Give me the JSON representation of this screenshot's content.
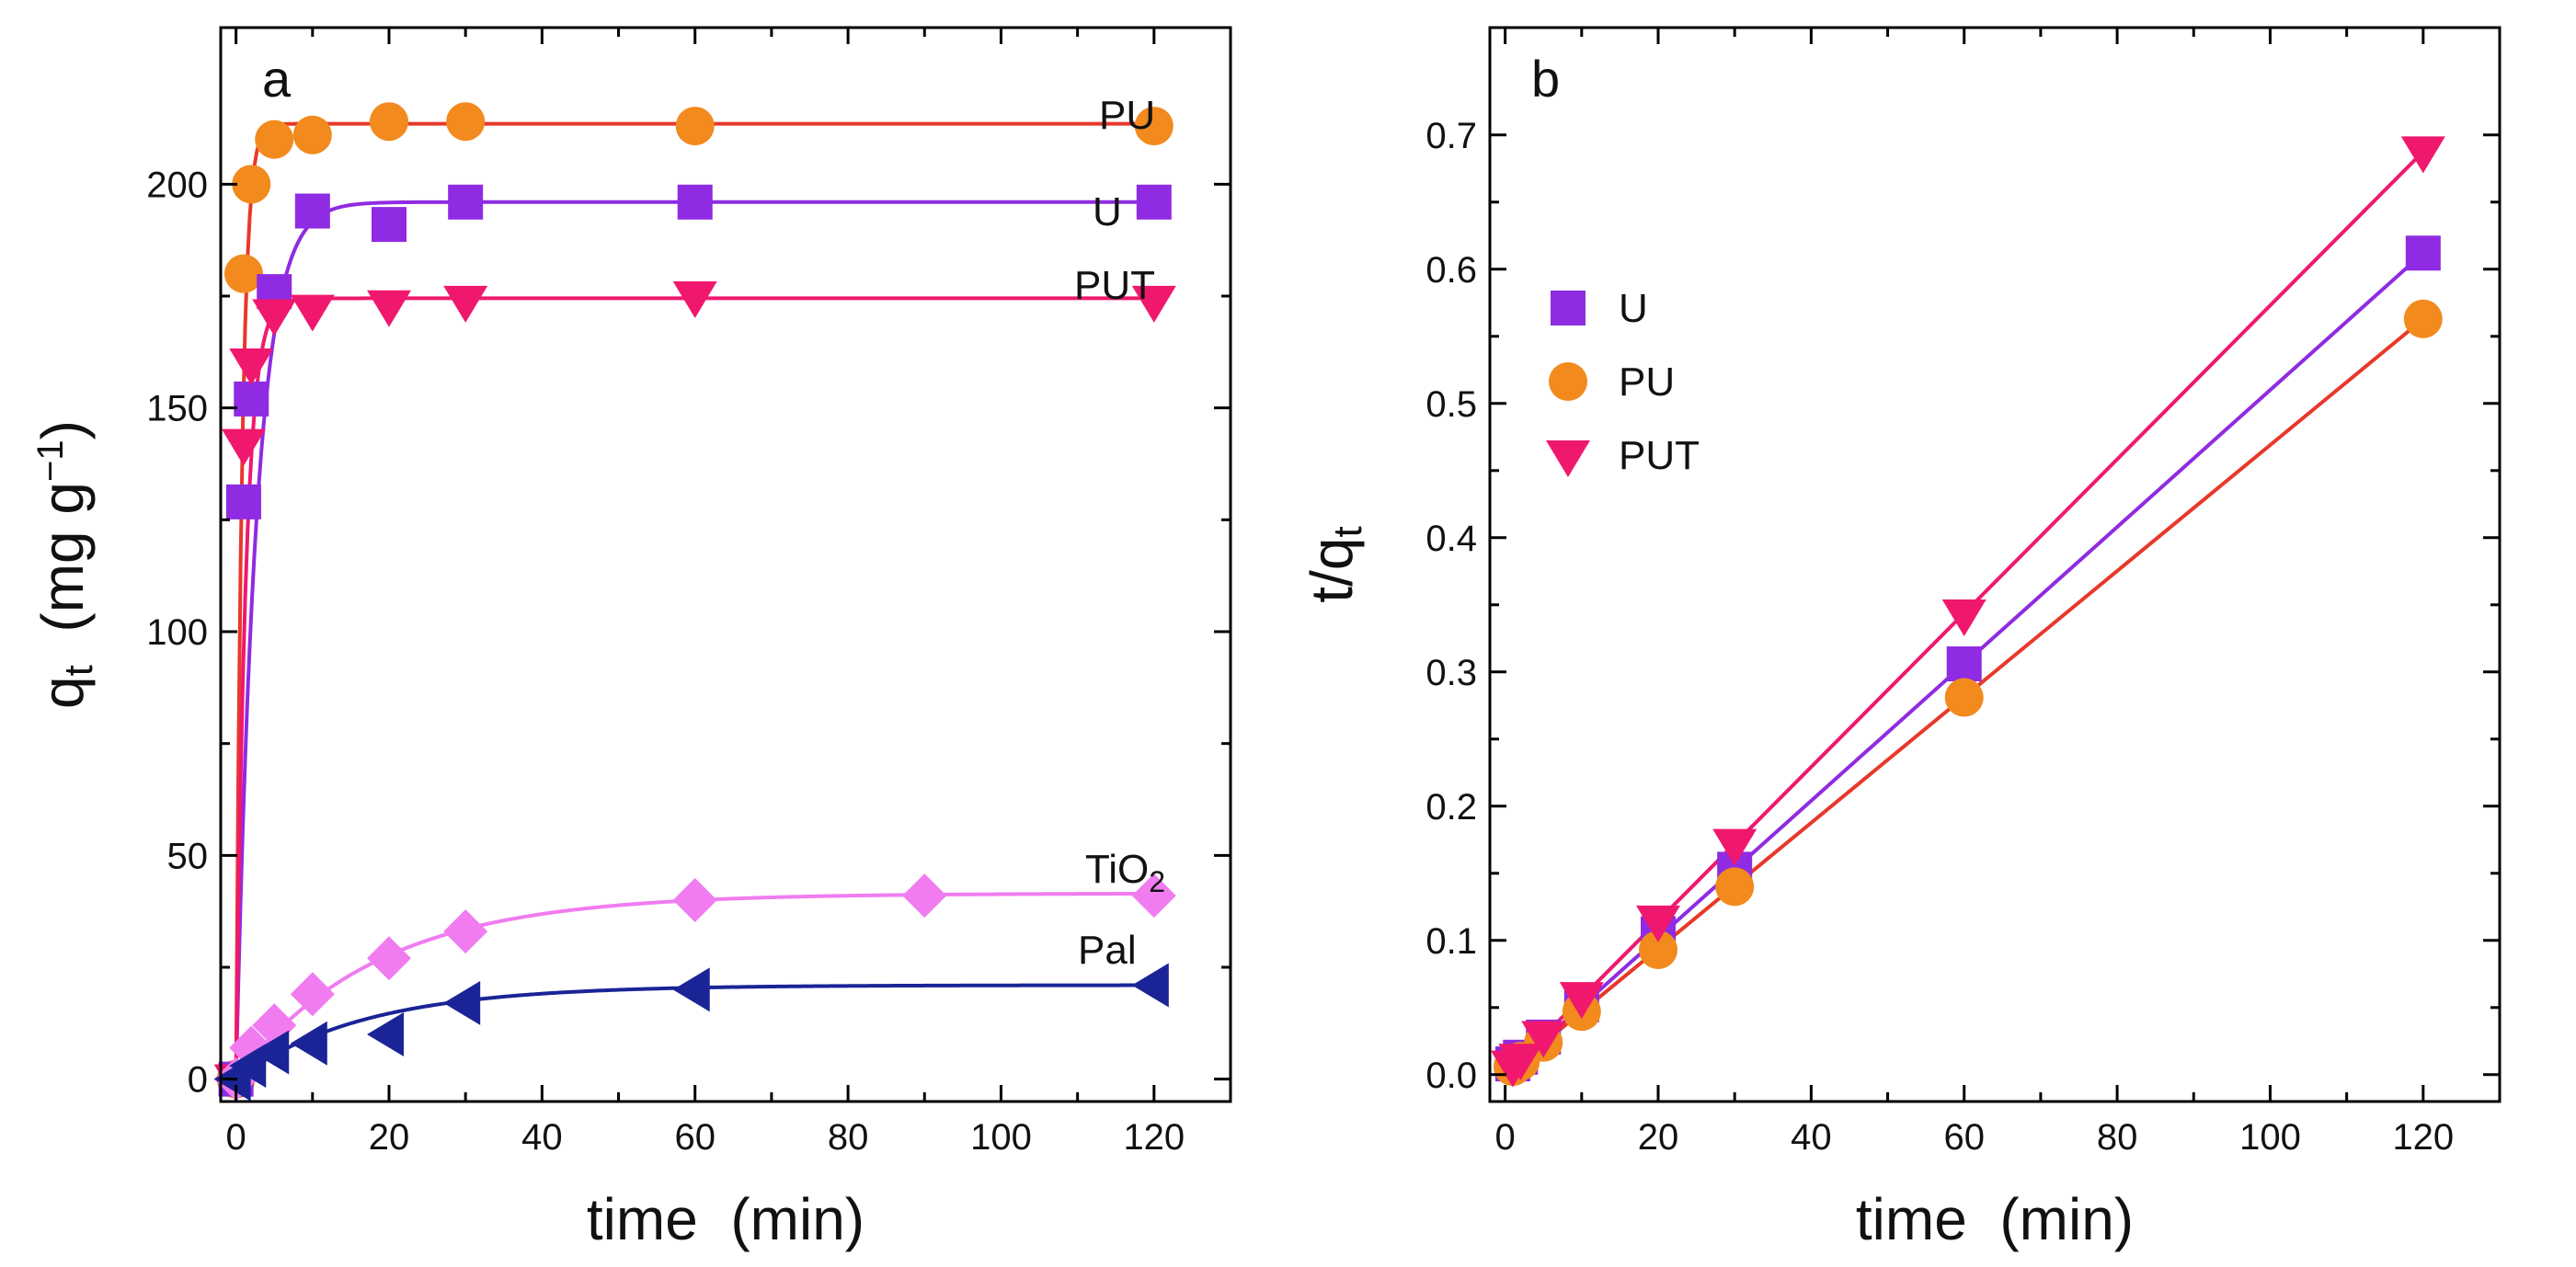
{
  "chart_data": [
    {
      "panel": "a",
      "type": "scatter",
      "xlabel": "time  (min)",
      "ylabel": "q_t  (mg g^-1)",
      "ylabel_parts": {
        "main": "q",
        "sub": "t",
        "unit_open": "  (mg g",
        "sup": "−1",
        "unit_close": ")"
      },
      "xlim": [
        -2,
        130
      ],
      "ylim": [
        -5,
        235
      ],
      "xticks": [
        0,
        20,
        40,
        60,
        80,
        100,
        120
      ],
      "xtick_labels": [
        "0",
        "20",
        "40",
        "60",
        "80",
        "100",
        "120"
      ],
      "yticks": [
        0,
        50,
        100,
        150,
        200
      ],
      "ytick_labels": [
        "0",
        "50",
        "100",
        "150",
        "200"
      ],
      "series": [
        {
          "name": "PU",
          "label": "PU",
          "color": "#f28a1e",
          "line_color": "#e8382a",
          "marker": "circle",
          "x": [
            0,
            1,
            2,
            5,
            10,
            20,
            30,
            60,
            120
          ],
          "y": [
            0,
            180,
            200,
            210,
            211,
            214,
            214,
            213,
            213
          ],
          "fit": {
            "qe": 213.5,
            "k": 1.3
          }
        },
        {
          "name": "U",
          "label": "U",
          "color": "#8f2be2",
          "line_color": "#8f2be2",
          "marker": "square",
          "x": [
            0,
            1,
            2,
            5,
            10,
            20,
            30,
            60,
            120
          ],
          "y": [
            0,
            129,
            152,
            176,
            194,
            191,
            196,
            196,
            196
          ],
          "fit": {
            "qe": 196,
            "k": 0.38
          }
        },
        {
          "name": "PUT",
          "label": "PUT",
          "color": "#f0186e",
          "line_color": "#f0186e",
          "marker": "triangle-down",
          "x": [
            0,
            1,
            2,
            5,
            10,
            20,
            30,
            60,
            120
          ],
          "y": [
            0,
            142,
            160,
            171,
            172,
            173,
            174,
            175,
            174
          ],
          "fit": {
            "qe": 174.5,
            "k": 0.8
          }
        },
        {
          "name": "TiO2",
          "label_main": "TiO",
          "label_sub": "2",
          "color": "#f07cf0",
          "line_color": "#f07cf0",
          "marker": "diamond",
          "x": [
            0,
            2,
            5,
            10,
            20,
            30,
            60,
            90,
            120
          ],
          "y": [
            0,
            7,
            12,
            19,
            27,
            33,
            40,
            41,
            41
          ],
          "fit": {
            "qe": 41.5,
            "k": 0.055
          }
        },
        {
          "name": "Pal",
          "label": "Pal",
          "color": "#1a2496",
          "line_color": "#1a2496",
          "marker": "triangle-left",
          "x": [
            0,
            2,
            5,
            10,
            20,
            30,
            60,
            120
          ],
          "y": [
            0,
            3,
            6,
            8,
            10,
            17,
            20,
            21
          ],
          "fit": {
            "qe": 21,
            "k": 0.06
          }
        }
      ]
    },
    {
      "panel": "b",
      "type": "scatter",
      "xlabel": "time  (min)",
      "ylabel": "t/q_t",
      "ylabel_parts": {
        "main": "t/q",
        "sub": "t"
      },
      "xlim": [
        -2,
        130
      ],
      "ylim": [
        -0.02,
        0.78
      ],
      "xticks": [
        0,
        20,
        40,
        60,
        80,
        100,
        120
      ],
      "xtick_labels": [
        "0",
        "20",
        "40",
        "60",
        "80",
        "100",
        "120"
      ],
      "yticks": [
        0.0,
        0.1,
        0.2,
        0.3,
        0.4,
        0.5,
        0.6,
        0.7
      ],
      "ytick_labels": [
        "0.0",
        "0.1",
        "0.2",
        "0.3",
        "0.4",
        "0.5",
        "0.6",
        "0.7"
      ],
      "legend": {
        "position": "upper-left",
        "entries": [
          "U",
          "PU",
          "PUT"
        ]
      },
      "series": [
        {
          "name": "U",
          "label": "U",
          "color": "#8f2be2",
          "line_color": "#8f2be2",
          "marker": "square",
          "x": [
            1,
            2,
            5,
            10,
            20,
            30,
            60,
            120
          ],
          "y": [
            0.008,
            0.013,
            0.028,
            0.052,
            0.105,
            0.153,
            0.306,
            0.612
          ],
          "fit": {
            "slope": 0.0051,
            "intercept": 0.0
          }
        },
        {
          "name": "PU",
          "label": "PU",
          "color": "#f28a1e",
          "line_color": "#e8382a",
          "marker": "circle",
          "x": [
            1,
            2,
            5,
            10,
            20,
            30,
            60,
            120
          ],
          "y": [
            0.006,
            0.01,
            0.024,
            0.047,
            0.093,
            0.14,
            0.281,
            0.563
          ],
          "fit": {
            "slope": 0.00469,
            "intercept": 0.0
          }
        },
        {
          "name": "PUT",
          "label": "PUT",
          "color": "#f0186e",
          "line_color": "#f0186e",
          "marker": "triangle-down",
          "x": [
            1,
            2,
            5,
            10,
            20,
            30,
            60,
            120
          ],
          "y": [
            0.007,
            0.012,
            0.029,
            0.058,
            0.115,
            0.172,
            0.343,
            0.688
          ],
          "fit": {
            "slope": 0.00573,
            "intercept": 0.0
          }
        }
      ]
    }
  ]
}
